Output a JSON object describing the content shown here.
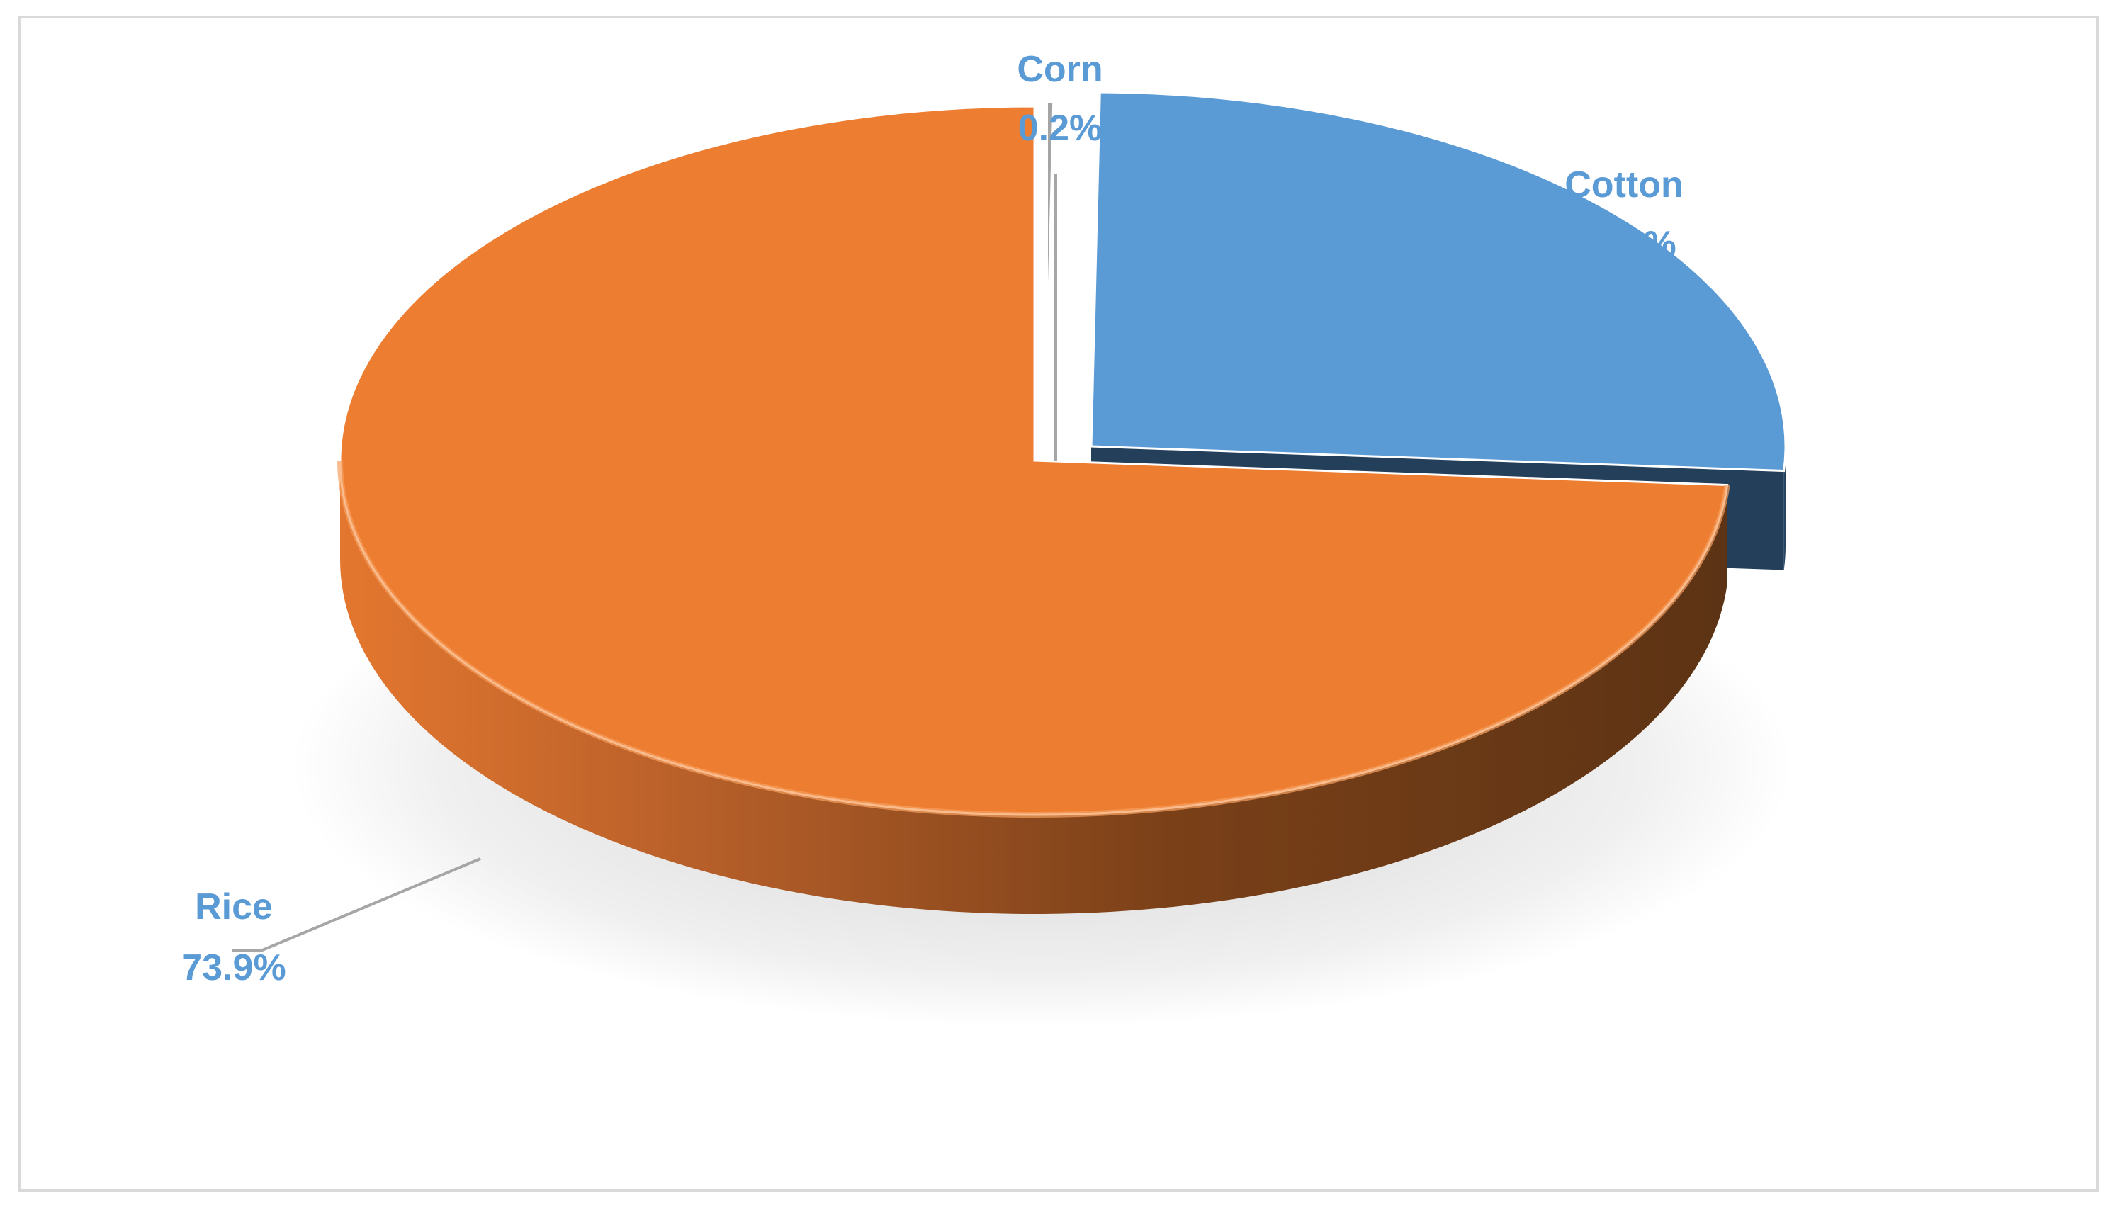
{
  "chart_data": {
    "type": "pie",
    "categories": [
      "Corn",
      "Cotton",
      "Rice"
    ],
    "values": [
      0.2,
      25.9,
      73.9
    ],
    "value_labels": [
      "0.2%",
      "25.9%",
      "73.9%"
    ],
    "colors": [
      "#a5a5a5",
      "#5b9bd5",
      "#ed7d31"
    ],
    "style": "3d-exploded",
    "title": ""
  }
}
